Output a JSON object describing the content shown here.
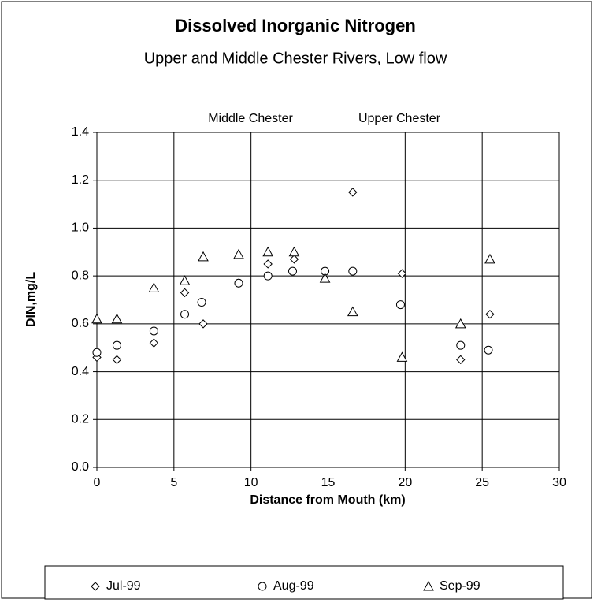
{
  "chart_data": {
    "type": "scatter",
    "title": "Dissolved Inorganic Nitrogen",
    "subtitle": "Upper and Middle Chester Rivers, Low flow",
    "annotations": [
      "Middle Chester",
      "Upper Chester"
    ],
    "x_label": "Distance from Mouth (km)",
    "y_label": "DIN,mg/L",
    "xlim": [
      0,
      30
    ],
    "xticks": [
      0,
      5,
      10,
      15,
      20,
      25,
      30
    ],
    "ylim": [
      0,
      1.4
    ],
    "yticks": [
      {
        "value": 0,
        "label": "0.0"
      },
      0.2,
      0.4,
      0.6,
      0.8,
      {
        "value": 1,
        "label": "1.0"
      },
      1.2,
      1.4
    ],
    "grid": true,
    "legend": "bottom",
    "series": [
      {
        "name": "Jul-99",
        "color": "#000000",
        "marker": "diamond",
        "x": [
          0,
          1.3,
          3.7,
          5.7,
          6.9,
          9.2,
          11.1,
          12.8,
          16.6,
          19.8,
          23.6,
          25.5
        ],
        "values": [
          0.46,
          0.45,
          0.52,
          0.73,
          0.6,
          0.77,
          0.85,
          0.87,
          1.15,
          0.81,
          0.45,
          0.64
        ]
      },
      {
        "name": "Aug-99",
        "color": "#000000",
        "marker": "circle",
        "x": [
          0,
          1.3,
          3.7,
          5.7,
          6.8,
          9.2,
          11.1,
          12.7,
          14.8,
          16.6,
          19.7,
          23.6,
          25.4
        ],
        "values": [
          0.48,
          0.51,
          0.57,
          0.64,
          0.69,
          0.77,
          0.8,
          0.82,
          0.82,
          0.82,
          0.68,
          0.51,
          0.49
        ]
      },
      {
        "name": "Sep-99",
        "color": "#000000",
        "marker": "triangle",
        "x": [
          0,
          1.3,
          3.7,
          5.7,
          6.9,
          9.2,
          11.1,
          12.8,
          14.8,
          16.6,
          19.8,
          23.6,
          25.5
        ],
        "values": [
          0.62,
          0.62,
          0.75,
          0.78,
          0.88,
          0.89,
          0.9,
          0.9,
          0.79,
          0.65,
          0.46,
          0.6,
          0.87
        ]
      }
    ]
  }
}
